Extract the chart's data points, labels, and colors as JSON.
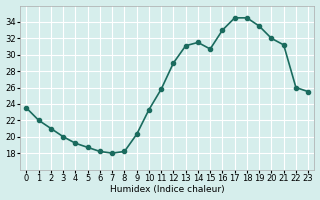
{
  "x": [
    0,
    1,
    2,
    3,
    4,
    5,
    6,
    7,
    8,
    9,
    10,
    11,
    12,
    13,
    14,
    15,
    16,
    17,
    18,
    19,
    20,
    21,
    22,
    23
  ],
  "y": [
    23.5,
    22,
    21,
    20,
    19.2,
    18.7,
    18.2,
    18,
    18.2,
    20.3,
    23.3,
    25.8,
    29,
    31.1,
    31.5,
    30.7,
    33,
    34.5,
    34.5,
    33.5,
    32,
    31.2,
    26,
    25.5
  ],
  "line_color": "#1a6b5e",
  "marker": "o",
  "markersize": 3,
  "linewidth": 1.2,
  "bg_color": "#d6eeec",
  "grid_color": "#ffffff",
  "xlabel": "Humidex (Indice chaleur)",
  "ylim": [
    16,
    36
  ],
  "xlim": [
    -0.5,
    23.5
  ],
  "yticks": [
    18,
    20,
    22,
    24,
    26,
    28,
    30,
    32,
    34
  ],
  "xticks": [
    0,
    1,
    2,
    3,
    4,
    5,
    6,
    7,
    8,
    9,
    10,
    11,
    12,
    13,
    14,
    15,
    16,
    17,
    18,
    19,
    20,
    21,
    22,
    23
  ],
  "xtick_labels": [
    "0",
    "1",
    "2",
    "3",
    "4",
    "5",
    "6",
    "7",
    "8",
    "9",
    "10",
    "11",
    "12",
    "13",
    "14",
    "15",
    "16",
    "17",
    "18",
    "19",
    "20",
    "21",
    "22",
    "23"
  ]
}
